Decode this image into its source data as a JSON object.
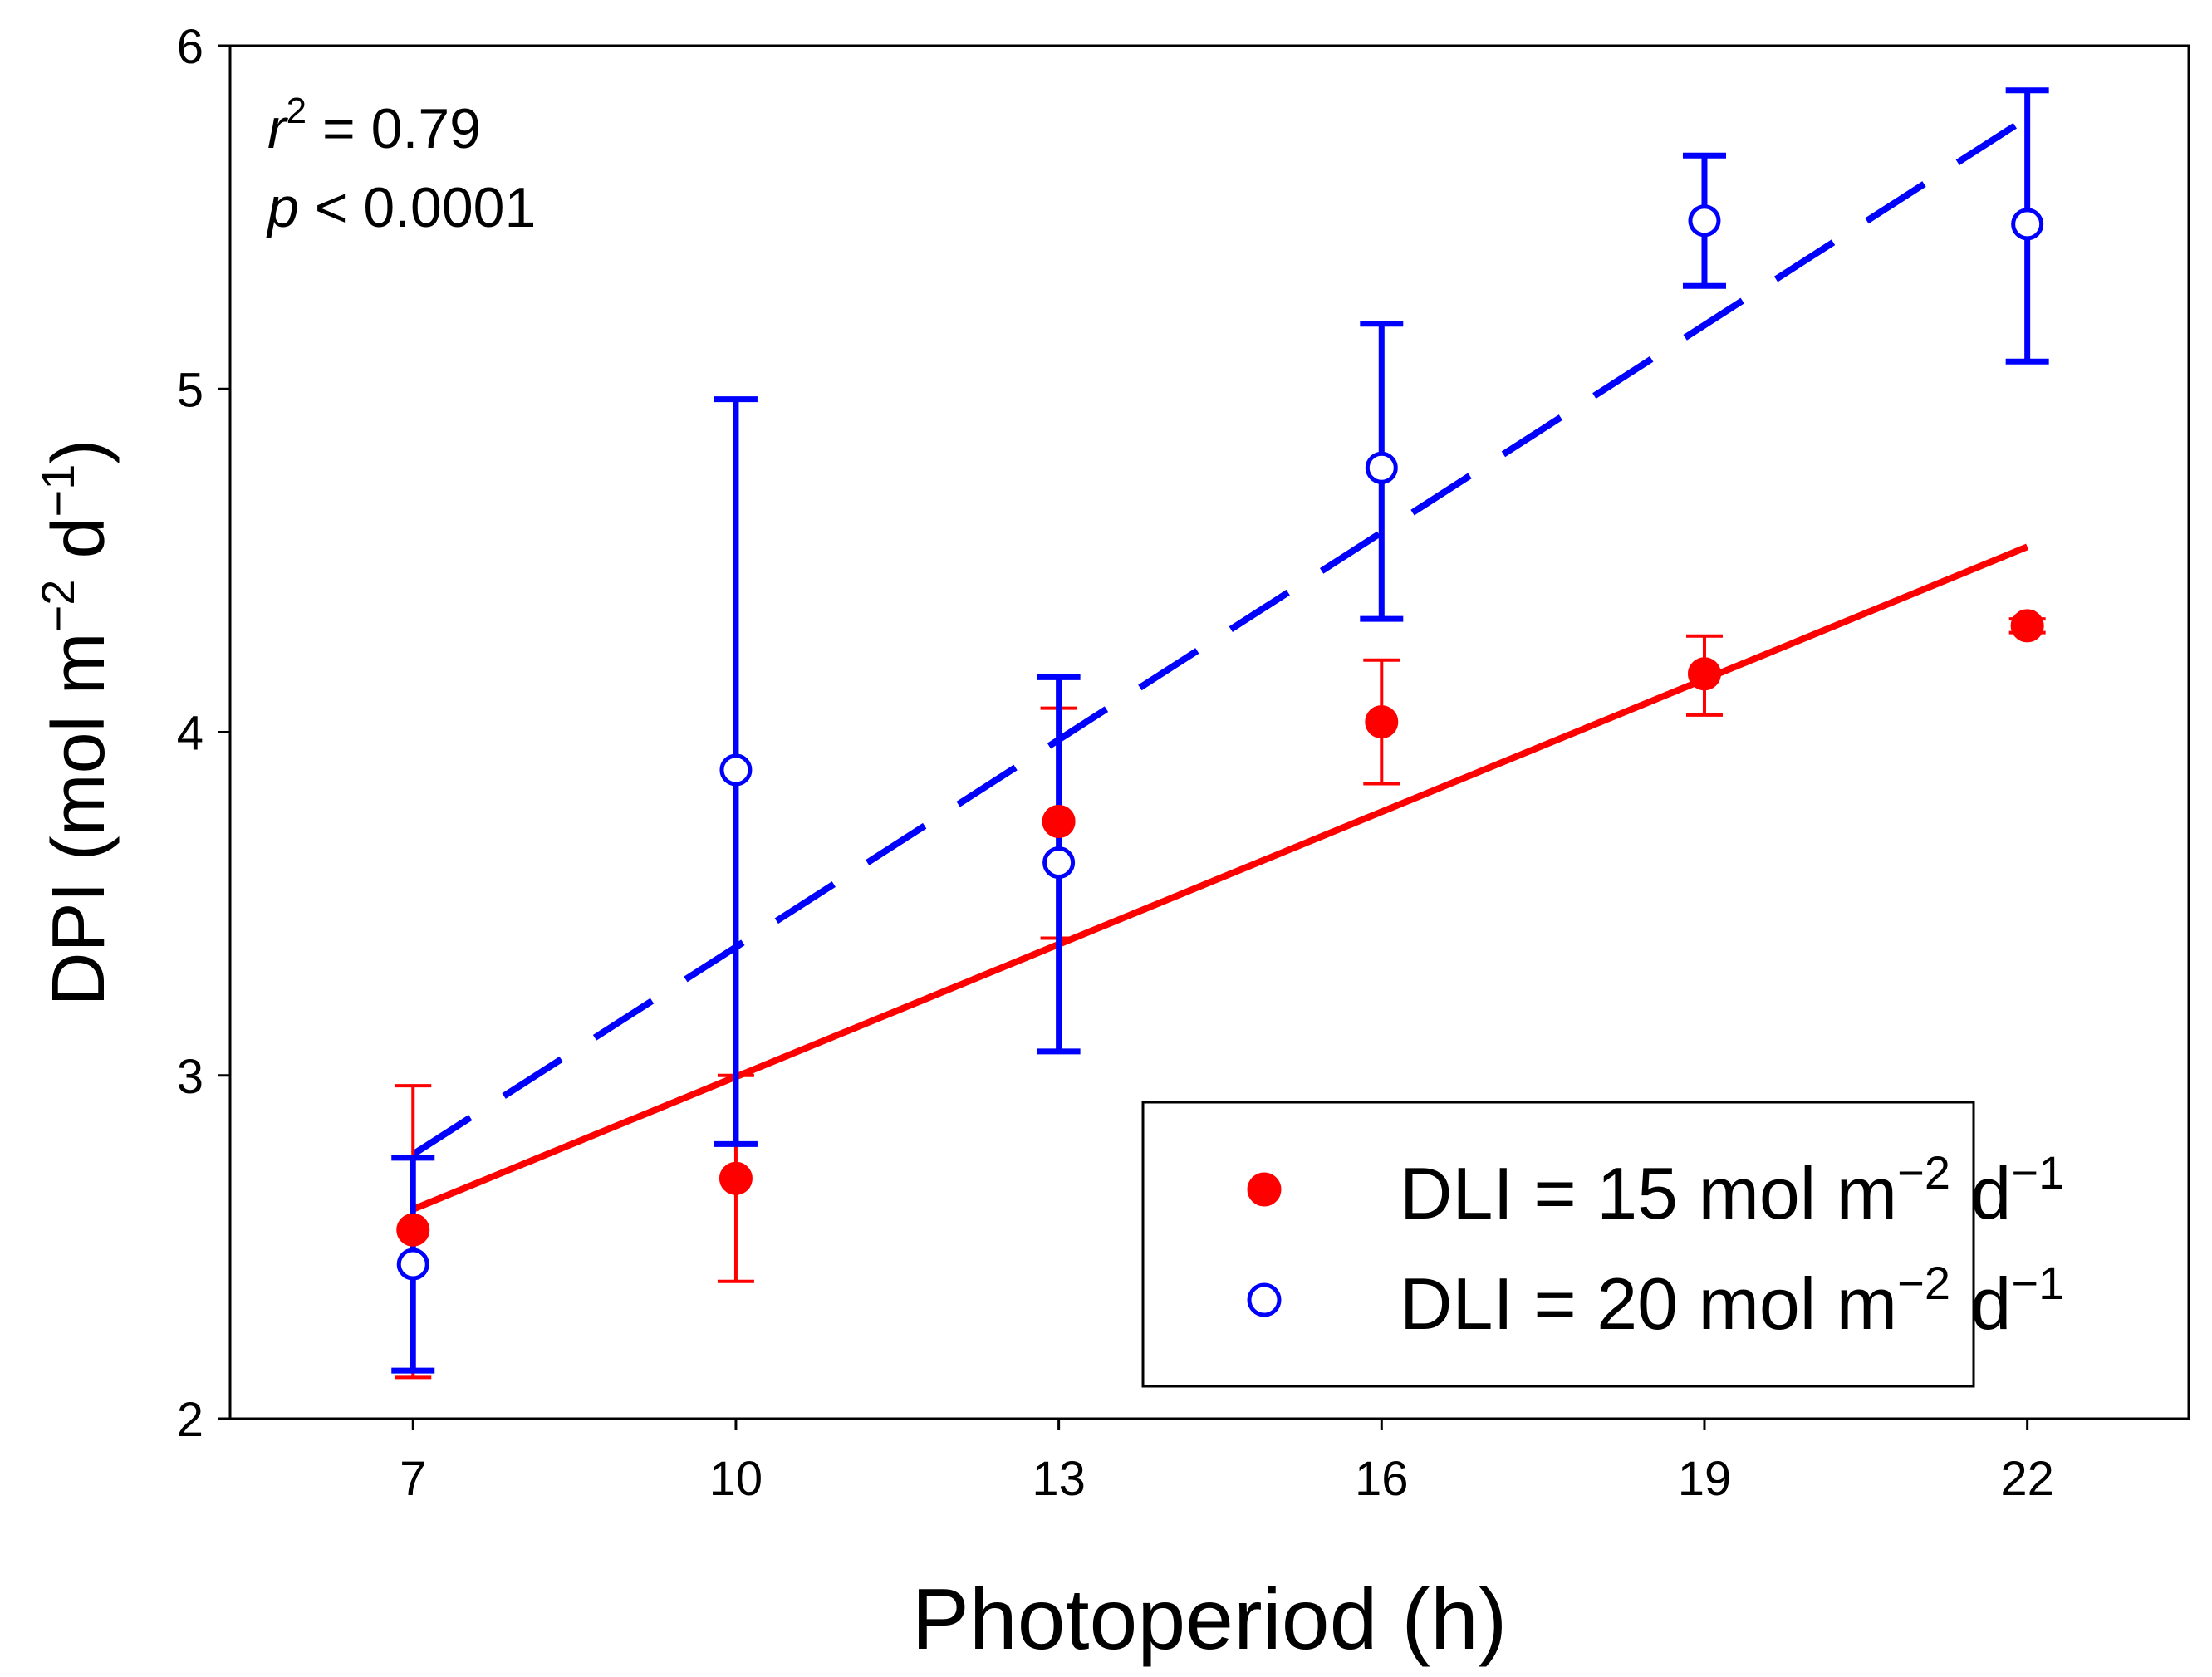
{
  "chart_data": {
    "type": "scatter",
    "xlabel": "Photoperiod (h)",
    "ylabel": {
      "prefix": "DPI (mol m",
      "exp1": "−2",
      "mid": " d",
      "exp2": "−1",
      "suffix": ")"
    },
    "xlim": [
      5.3,
      23.5
    ],
    "ylim": [
      2,
      6
    ],
    "xticks": [
      "7",
      "10",
      "13",
      "16",
      "19",
      "22"
    ],
    "yticks": [
      "2",
      "3",
      "4",
      "5",
      "6"
    ],
    "annotation": {
      "r_symbol": "r",
      "r_exp": "2",
      "r_rest": " = 0.79",
      "p_symbol": "p",
      "p_rest": " < 0.0001"
    },
    "legend_position": "lower-right",
    "series": [
      {
        "name": "DLI = 15 mol m−2 d−1",
        "legend": {
          "text": "DLI = 15 mol m",
          "exp1": "−2",
          "mid": " d",
          "exp2": "−1"
        },
        "marker": "filled-circle",
        "color": "#ff0000",
        "x": [
          7,
          10,
          13,
          16,
          19,
          22
        ],
        "y": [
          2.55,
          2.7,
          3.74,
          4.03,
          4.17,
          4.31
        ],
        "err_low": [
          2.12,
          2.4,
          3.4,
          3.85,
          4.05,
          4.29
        ],
        "err_high": [
          2.97,
          3.0,
          4.07,
          4.21,
          4.28,
          4.33
        ],
        "fit": {
          "x": [
            7,
            22
          ],
          "y": [
            2.61,
            4.54
          ],
          "style": "solid"
        }
      },
      {
        "name": "DLI = 20 mol m−2 d−1",
        "legend": {
          "text": "DLI = 20 mol m",
          "exp1": "−2",
          "mid": " d",
          "exp2": "−1"
        },
        "marker": "open-circle",
        "color": "#0000ff",
        "x": [
          7,
          10,
          13,
          16,
          19,
          22
        ],
        "y": [
          2.45,
          3.89,
          3.62,
          4.77,
          5.49,
          5.48
        ],
        "err_low": [
          2.14,
          2.8,
          3.07,
          4.33,
          5.3,
          5.08
        ],
        "err_high": [
          2.76,
          4.97,
          4.16,
          5.19,
          5.68,
          5.87
        ],
        "fit": {
          "x": [
            7,
            22
          ],
          "y": [
            2.77,
            5.79
          ],
          "style": "dashed"
        }
      }
    ]
  }
}
